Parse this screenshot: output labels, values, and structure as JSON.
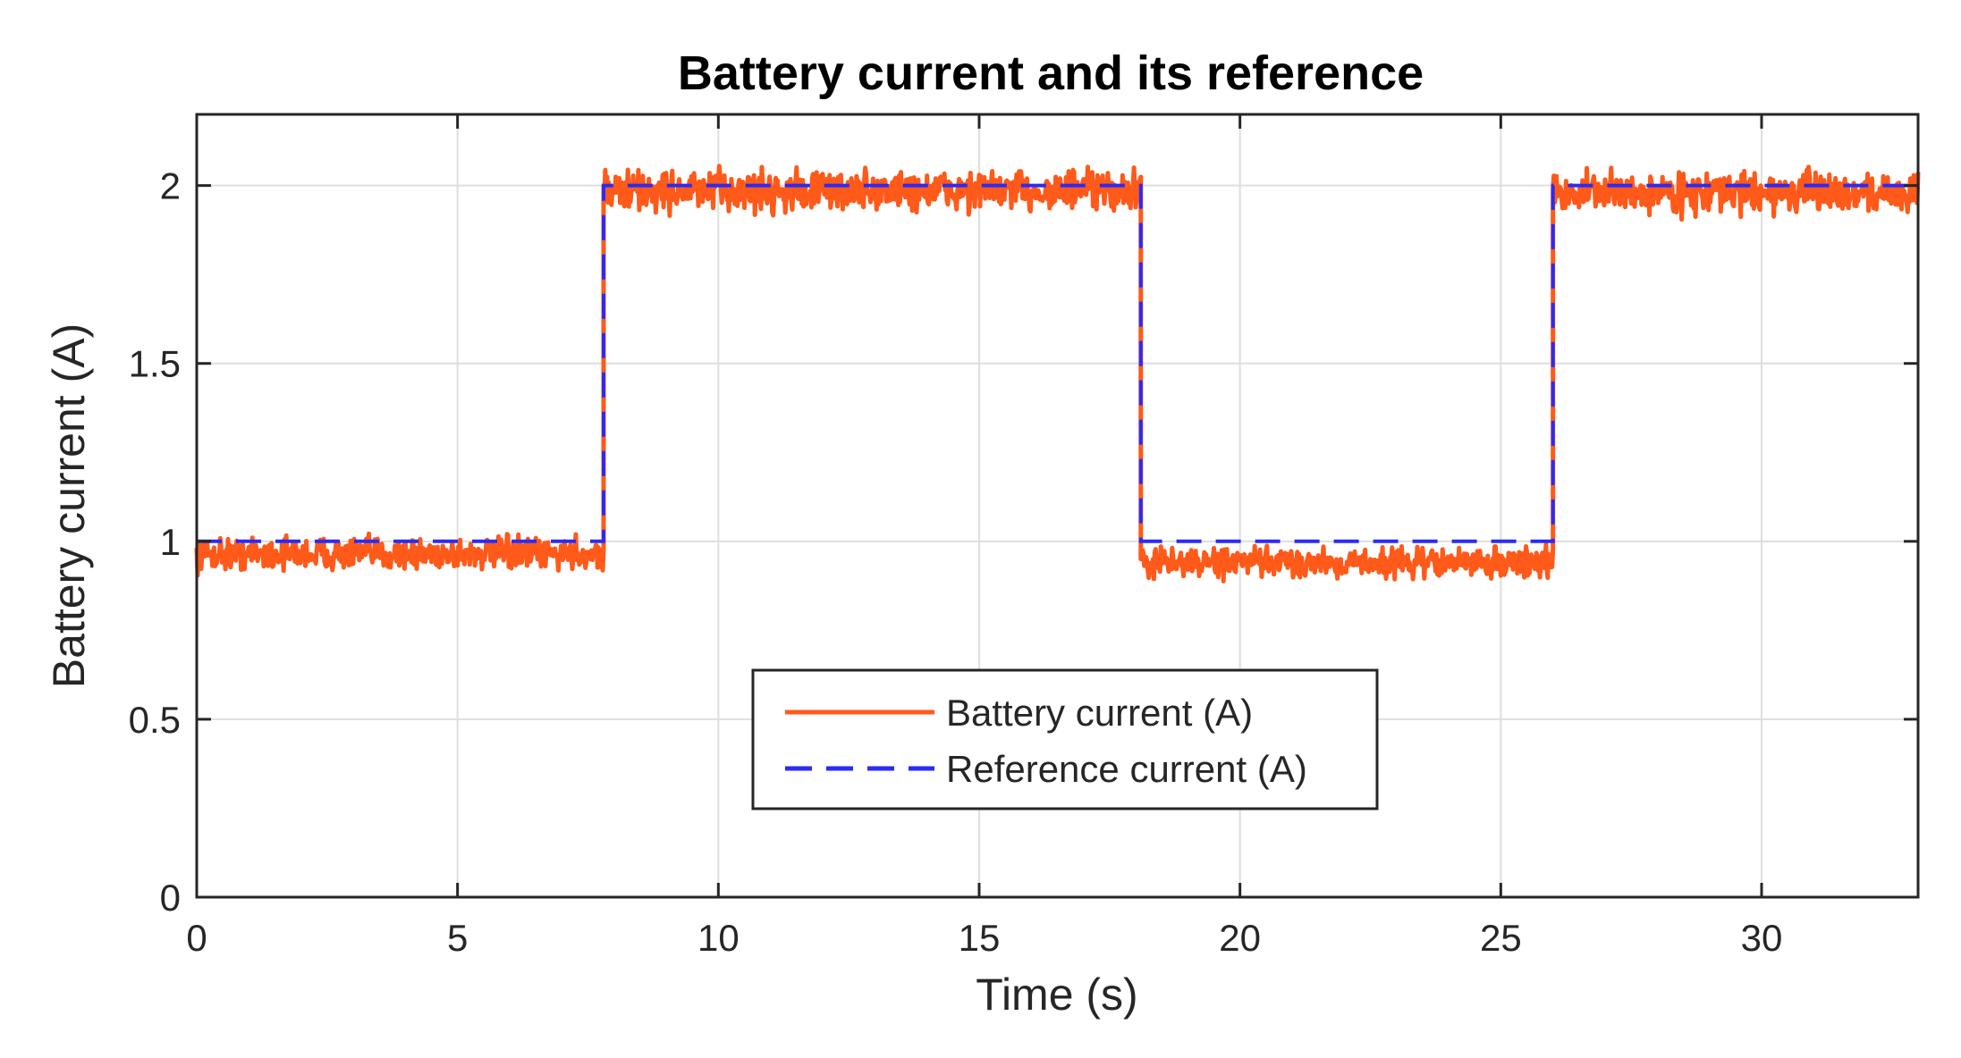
{
  "chart_data": {
    "type": "line",
    "title": "Battery current and its reference",
    "xlabel": "Time (s)",
    "ylabel": "Battery current (A)",
    "xlim": [
      0,
      33
    ],
    "ylim": [
      0,
      2.2
    ],
    "xticks": [
      0,
      5,
      10,
      15,
      20,
      25,
      30
    ],
    "yticks": [
      0,
      0.5,
      1,
      1.5,
      2
    ],
    "xtick_labels": [
      "0",
      "5",
      "10",
      "15",
      "20",
      "25",
      "30"
    ],
    "ytick_labels": [
      "0",
      "0.5",
      "1",
      "1.5",
      "2"
    ],
    "grid": true,
    "legend_position": "center-bottom",
    "series": [
      {
        "name": "Battery current (A)",
        "color": "#ff5a1a",
        "style": "solid",
        "noisy": true,
        "segments": [
          {
            "x_start": 0,
            "x_end": 7.8,
            "mean": 0.96,
            "band": [
              0.9,
              1.03
            ]
          },
          {
            "x_start": 7.8,
            "x_end": 18.1,
            "mean": 2.0,
            "band": [
              1.9,
              2.07
            ]
          },
          {
            "x_start": 18.1,
            "x_end": 26.0,
            "mean": 0.95,
            "band": [
              0.88,
              1.0
            ]
          },
          {
            "x_start": 26.0,
            "x_end": 33,
            "mean": 1.99,
            "band": [
              1.9,
              2.06
            ]
          }
        ]
      },
      {
        "name": "Reference current (A)",
        "color": "#2b2bf5",
        "style": "dashed",
        "x": [
          0,
          7.8,
          7.8,
          18.1,
          18.1,
          26.0,
          26.0,
          33
        ],
        "y": [
          1,
          1,
          2,
          2,
          1,
          1,
          2,
          2
        ]
      }
    ]
  }
}
